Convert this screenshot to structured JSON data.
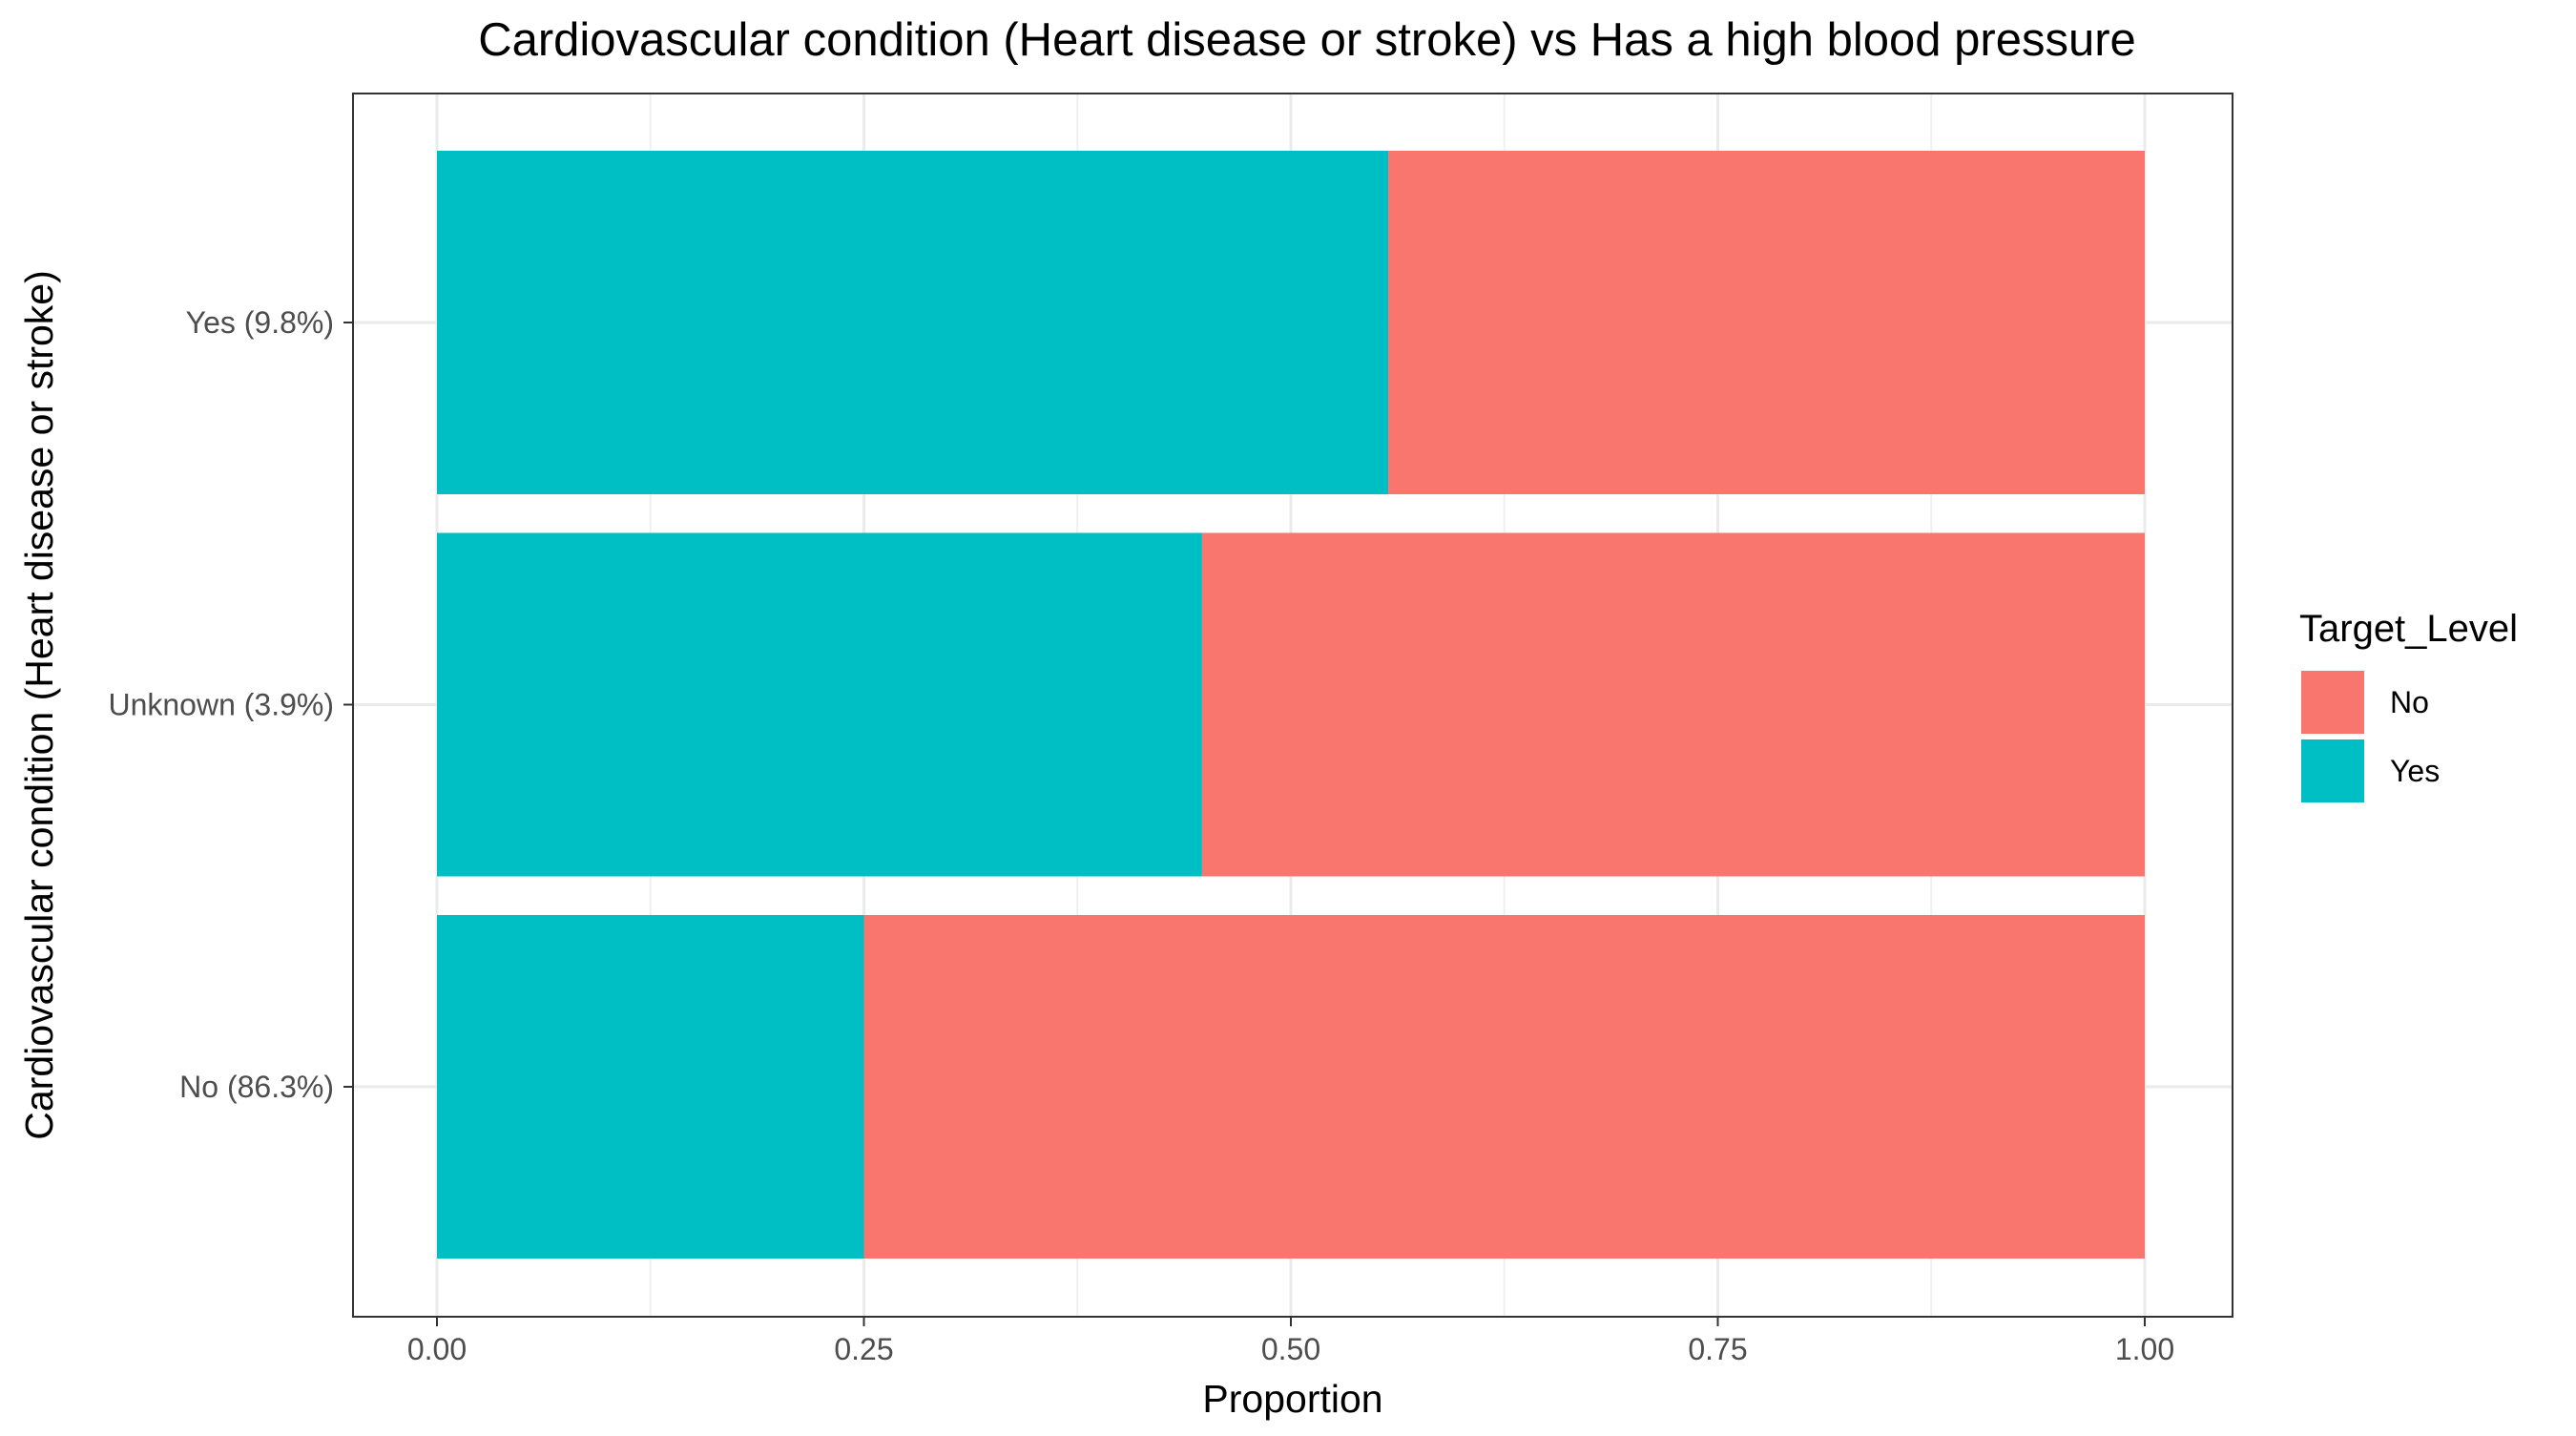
{
  "chart_data": {
    "type": "bar",
    "orientation": "horizontal",
    "stacked": true,
    "title": "Cardiovascular condition (Heart disease or stroke) vs Has a high blood pressure",
    "xlabel": "Proportion",
    "ylabel": "Cardiovascular condition (Heart disease or stroke)",
    "xlim": [
      0,
      1
    ],
    "xticks": [
      "0.00",
      "0.25",
      "0.50",
      "0.75",
      "1.00"
    ],
    "xtick_values": [
      0,
      0.25,
      0.5,
      0.75,
      1
    ],
    "categories": [
      "No (86.3%)",
      "Unknown (3.9%)",
      "Yes (9.8%)"
    ],
    "series": [
      {
        "name": "Yes",
        "color": "#00BFC4",
        "values": [
          0.25,
          0.448,
          0.557
        ]
      },
      {
        "name": "No",
        "color": "#F8766D",
        "values": [
          0.75,
          0.552,
          0.443
        ]
      }
    ],
    "legend": {
      "title": "Target_Level",
      "position": "right",
      "entries": [
        {
          "label": "No",
          "color": "#F8766D"
        },
        {
          "label": "Yes",
          "color": "#00BFC4"
        }
      ]
    },
    "grid": true
  }
}
